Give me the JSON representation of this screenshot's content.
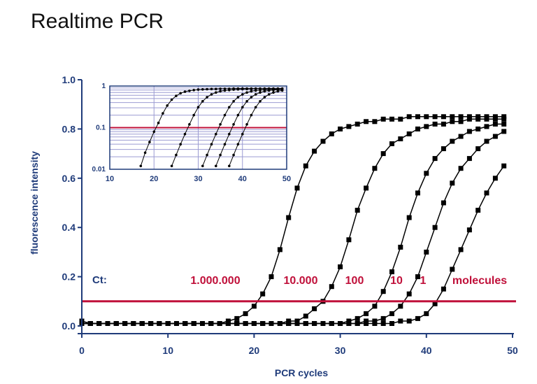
{
  "slide": {
    "title": "Realtime PCR"
  },
  "colors": {
    "axis": "#1f3b7a",
    "threshold": "#c0103a",
    "curve": "#000000",
    "inset_grid": "#9b9bd2"
  },
  "chart_data": [
    {
      "type": "line",
      "title": "",
      "xlabel": "PCR cycles",
      "ylabel": "fluorescence intensity",
      "xlim": [
        0,
        50
      ],
      "ylim": [
        0,
        1.0
      ],
      "xticks": [
        "0",
        "10",
        "20",
        "30",
        "40",
        "50"
      ],
      "yticks": [
        "0.0",
        "0.2",
        "0.4",
        "0.6",
        "0.8",
        "1.0"
      ],
      "threshold": 0.1,
      "annotations": {
        "ct_label": "Ct:",
        "starting_amounts": [
          "1.000.000",
          "10.000",
          "100",
          "10",
          "1"
        ],
        "units": "molecules"
      },
      "series": [
        {
          "x": [
            0,
            1,
            2,
            3,
            4,
            5,
            6,
            7,
            8,
            9,
            10,
            11,
            12,
            13,
            14,
            15,
            16,
            17,
            18,
            19,
            20,
            21,
            22,
            23,
            24,
            25,
            26,
            27,
            28,
            29,
            30,
            31,
            32,
            33,
            34,
            35,
            36,
            37,
            38,
            39,
            40,
            41,
            42,
            43,
            44,
            45,
            46,
            47,
            48,
            49
          ],
          "y": [
            0.02,
            0.01,
            0.01,
            0.01,
            0.01,
            0.01,
            0.01,
            0.01,
            0.01,
            0.01,
            0.01,
            0.01,
            0.01,
            0.01,
            0.01,
            0.01,
            0.01,
            0.02,
            0.03,
            0.05,
            0.08,
            0.13,
            0.2,
            0.31,
            0.44,
            0.56,
            0.65,
            0.71,
            0.75,
            0.78,
            0.8,
            0.81,
            0.82,
            0.83,
            0.83,
            0.84,
            0.84,
            0.84,
            0.85,
            0.85,
            0.85,
            0.85,
            0.85,
            0.85,
            0.85,
            0.85,
            0.85,
            0.85,
            0.85,
            0.85
          ]
        },
        {
          "x": [
            0,
            1,
            2,
            3,
            4,
            5,
            6,
            7,
            8,
            9,
            10,
            11,
            12,
            13,
            14,
            15,
            16,
            17,
            18,
            19,
            20,
            21,
            22,
            23,
            24,
            25,
            26,
            27,
            28,
            29,
            30,
            31,
            32,
            33,
            34,
            35,
            36,
            37,
            38,
            39,
            40,
            41,
            42,
            43,
            44,
            45,
            46,
            47,
            48,
            49
          ],
          "y": [
            0.01,
            0.01,
            0.01,
            0.01,
            0.01,
            0.01,
            0.01,
            0.01,
            0.01,
            0.01,
            0.01,
            0.01,
            0.01,
            0.01,
            0.01,
            0.01,
            0.01,
            0.01,
            0.01,
            0.01,
            0.01,
            0.01,
            0.01,
            0.01,
            0.02,
            0.02,
            0.04,
            0.07,
            0.1,
            0.16,
            0.24,
            0.35,
            0.47,
            0.56,
            0.64,
            0.7,
            0.74,
            0.76,
            0.78,
            0.8,
            0.81,
            0.82,
            0.82,
            0.83,
            0.83,
            0.84,
            0.84,
            0.84,
            0.84,
            0.84
          ]
        },
        {
          "x": [
            0,
            1,
            2,
            3,
            4,
            5,
            6,
            7,
            8,
            9,
            10,
            11,
            12,
            13,
            14,
            15,
            16,
            17,
            18,
            19,
            20,
            21,
            22,
            23,
            24,
            25,
            26,
            27,
            28,
            29,
            30,
            31,
            32,
            33,
            34,
            35,
            36,
            37,
            38,
            39,
            40,
            41,
            42,
            43,
            44,
            45,
            46,
            47,
            48,
            49
          ],
          "y": [
            0.01,
            0.01,
            0.01,
            0.01,
            0.01,
            0.01,
            0.01,
            0.01,
            0.01,
            0.01,
            0.01,
            0.01,
            0.01,
            0.01,
            0.01,
            0.01,
            0.01,
            0.01,
            0.01,
            0.01,
            0.01,
            0.01,
            0.01,
            0.01,
            0.01,
            0.01,
            0.01,
            0.01,
            0.01,
            0.01,
            0.01,
            0.02,
            0.03,
            0.05,
            0.08,
            0.14,
            0.22,
            0.32,
            0.44,
            0.54,
            0.62,
            0.68,
            0.72,
            0.75,
            0.77,
            0.79,
            0.8,
            0.81,
            0.82,
            0.82
          ]
        },
        {
          "x": [
            0,
            1,
            2,
            3,
            4,
            5,
            6,
            7,
            8,
            9,
            10,
            11,
            12,
            13,
            14,
            15,
            16,
            17,
            18,
            19,
            20,
            21,
            22,
            23,
            24,
            25,
            26,
            27,
            28,
            29,
            30,
            31,
            32,
            33,
            34,
            35,
            36,
            37,
            38,
            39,
            40,
            41,
            42,
            43,
            44,
            45,
            46,
            47,
            48,
            49
          ],
          "y": [
            0.01,
            0.01,
            0.01,
            0.01,
            0.01,
            0.01,
            0.01,
            0.01,
            0.01,
            0.01,
            0.01,
            0.01,
            0.01,
            0.01,
            0.01,
            0.01,
            0.01,
            0.01,
            0.01,
            0.01,
            0.01,
            0.01,
            0.01,
            0.01,
            0.01,
            0.01,
            0.01,
            0.01,
            0.01,
            0.01,
            0.01,
            0.01,
            0.01,
            0.02,
            0.02,
            0.03,
            0.05,
            0.08,
            0.13,
            0.2,
            0.3,
            0.4,
            0.5,
            0.58,
            0.64,
            0.68,
            0.72,
            0.75,
            0.77,
            0.79
          ]
        },
        {
          "x": [
            0,
            1,
            2,
            3,
            4,
            5,
            6,
            7,
            8,
            9,
            10,
            11,
            12,
            13,
            14,
            15,
            16,
            17,
            18,
            19,
            20,
            21,
            22,
            23,
            24,
            25,
            26,
            27,
            28,
            29,
            30,
            31,
            32,
            33,
            34,
            35,
            36,
            37,
            38,
            39,
            40,
            41,
            42,
            43,
            44,
            45,
            46,
            47,
            48,
            49
          ],
          "y": [
            0.01,
            0.01,
            0.01,
            0.01,
            0.01,
            0.01,
            0.01,
            0.01,
            0.01,
            0.01,
            0.01,
            0.01,
            0.01,
            0.01,
            0.01,
            0.01,
            0.01,
            0.01,
            0.01,
            0.01,
            0.01,
            0.01,
            0.01,
            0.01,
            0.01,
            0.01,
            0.01,
            0.01,
            0.01,
            0.01,
            0.01,
            0.01,
            0.01,
            0.01,
            0.01,
            0.01,
            0.01,
            0.02,
            0.02,
            0.03,
            0.05,
            0.09,
            0.15,
            0.23,
            0.31,
            0.39,
            0.47,
            0.54,
            0.6,
            0.65
          ]
        }
      ]
    },
    {
      "type": "line",
      "title": "",
      "xlim": [
        10,
        50
      ],
      "ylim": [
        0.01,
        1
      ],
      "yscale": "log",
      "xticks": [
        "10",
        "20",
        "30",
        "40",
        "50"
      ],
      "yticks": [
        "0.01",
        "0.1",
        "1"
      ],
      "threshold": 0.1,
      "grid": true,
      "series": [
        {
          "x": [
            17,
            18,
            19,
            20,
            21,
            22,
            23,
            24,
            25,
            26,
            27,
            28,
            29,
            30,
            31,
            32,
            33,
            34,
            35,
            36,
            37,
            38,
            39,
            40,
            41,
            42,
            43,
            44,
            45,
            46,
            47,
            48,
            49
          ],
          "y": [
            0.012,
            0.025,
            0.045,
            0.08,
            0.13,
            0.22,
            0.34,
            0.47,
            0.58,
            0.67,
            0.73,
            0.77,
            0.8,
            0.82,
            0.83,
            0.84,
            0.85,
            0.85,
            0.86,
            0.86,
            0.86,
            0.87,
            0.87,
            0.87,
            0.87,
            0.87,
            0.87,
            0.87,
            0.87,
            0.87,
            0.87,
            0.87,
            0.87
          ]
        },
        {
          "x": [
            24,
            25,
            26,
            27,
            28,
            29,
            30,
            31,
            32,
            33,
            34,
            35,
            36,
            37,
            38,
            39,
            40,
            41,
            42,
            43,
            44,
            45,
            46,
            47,
            48,
            49
          ],
          "y": [
            0.012,
            0.022,
            0.04,
            0.07,
            0.12,
            0.2,
            0.31,
            0.43,
            0.54,
            0.63,
            0.7,
            0.75,
            0.78,
            0.8,
            0.82,
            0.83,
            0.84,
            0.85,
            0.85,
            0.86,
            0.86,
            0.86,
            0.86,
            0.86,
            0.86,
            0.86
          ]
        },
        {
          "x": [
            31,
            32,
            33,
            34,
            35,
            36,
            37,
            38,
            39,
            40,
            41,
            42,
            43,
            44,
            45,
            46,
            47,
            48,
            49
          ],
          "y": [
            0.012,
            0.022,
            0.04,
            0.07,
            0.12,
            0.2,
            0.31,
            0.43,
            0.54,
            0.63,
            0.7,
            0.75,
            0.78,
            0.8,
            0.82,
            0.83,
            0.84,
            0.85,
            0.85
          ]
        },
        {
          "x": [
            34,
            35,
            36,
            37,
            38,
            39,
            40,
            41,
            42,
            43,
            44,
            45,
            46,
            47,
            48,
            49
          ],
          "y": [
            0.012,
            0.022,
            0.04,
            0.07,
            0.12,
            0.2,
            0.31,
            0.43,
            0.54,
            0.63,
            0.7,
            0.75,
            0.78,
            0.8,
            0.82,
            0.83
          ]
        },
        {
          "x": [
            37,
            38,
            39,
            40,
            41,
            42,
            43,
            44,
            45,
            46,
            47,
            48,
            49
          ],
          "y": [
            0.012,
            0.022,
            0.04,
            0.07,
            0.12,
            0.2,
            0.31,
            0.43,
            0.54,
            0.63,
            0.7,
            0.75,
            0.78
          ]
        }
      ]
    }
  ]
}
